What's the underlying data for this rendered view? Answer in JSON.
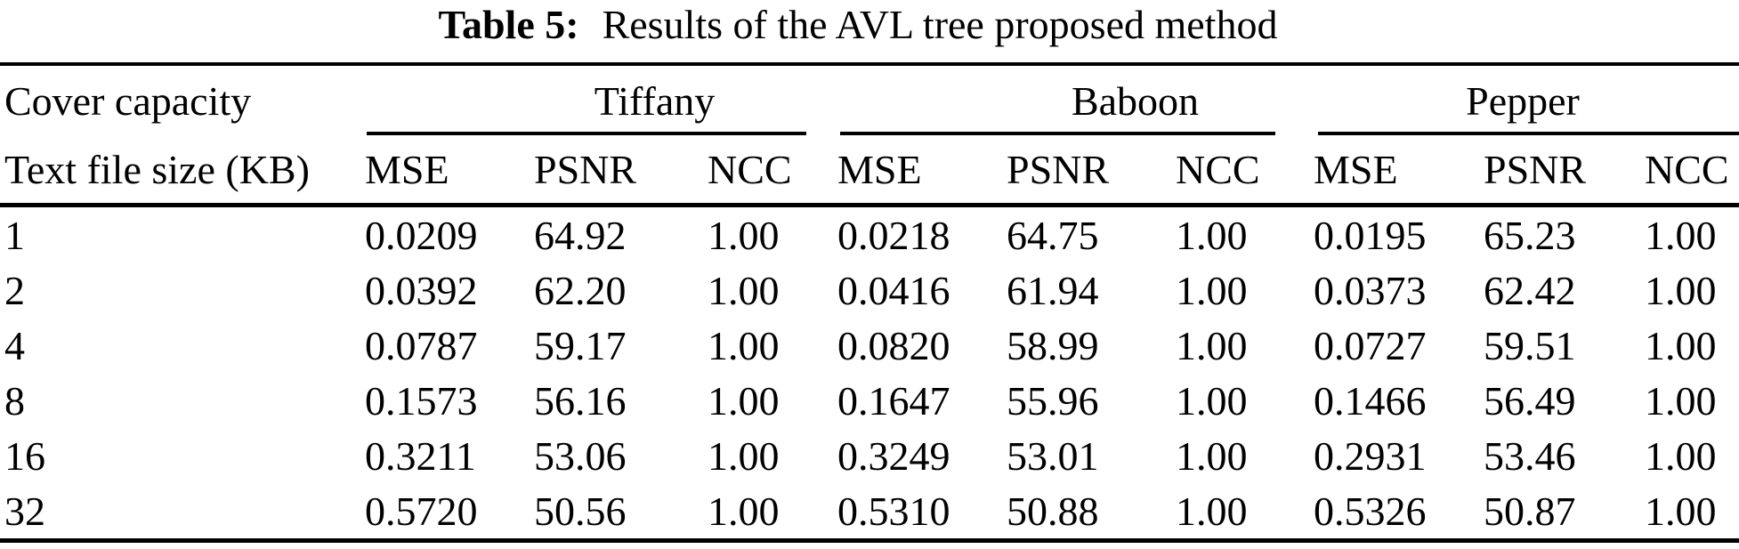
{
  "caption": {
    "label": "Table 5:",
    "text": "Results of the AVL tree proposed method"
  },
  "table": {
    "corner_label": "Cover capacity",
    "row_header": "Text file size (KB)",
    "groups": [
      {
        "name": "Tiffany"
      },
      {
        "name": "Baboon"
      },
      {
        "name": "Pepper"
      }
    ],
    "metric_headers": [
      "MSE",
      "PSNR",
      "NCC"
    ],
    "rows": [
      {
        "size": "1",
        "values": [
          "0.0209",
          "64.92",
          "1.00",
          "0.0218",
          "64.75",
          "1.00",
          "0.0195",
          "65.23",
          "1.00"
        ]
      },
      {
        "size": "2",
        "values": [
          "0.0392",
          "62.20",
          "1.00",
          "0.0416",
          "61.94",
          "1.00",
          "0.0373",
          "62.42",
          "1.00"
        ]
      },
      {
        "size": "4",
        "values": [
          "0.0787",
          "59.17",
          "1.00",
          "0.0820",
          "58.99",
          "1.00",
          "0.0727",
          "59.51",
          "1.00"
        ]
      },
      {
        "size": "8",
        "values": [
          "0.1573",
          "56.16",
          "1.00",
          "0.1647",
          "55.96",
          "1.00",
          "0.1466",
          "56.49",
          "1.00"
        ]
      },
      {
        "size": "16",
        "values": [
          "0.3211",
          "53.06",
          "1.00",
          "0.3249",
          "53.01",
          "1.00",
          "0.2931",
          "53.46",
          "1.00"
        ]
      },
      {
        "size": "32",
        "values": [
          "0.5720",
          "50.56",
          "1.00",
          "0.5310",
          "50.88",
          "1.00",
          "0.5326",
          "50.87",
          "1.00"
        ]
      }
    ]
  },
  "colors": {
    "text": "#000000",
    "background": "#ffffff",
    "rule": "#000000"
  }
}
